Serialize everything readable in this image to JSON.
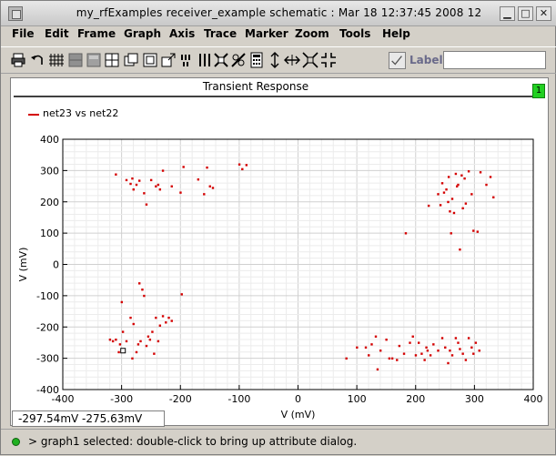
{
  "window": {
    "title": "my_rfExamples receiver_example schematic : Mar 18 12:37:45 2008 12",
    "buttons": {
      "minimize": "▁",
      "maximize": "□",
      "close": "✕"
    }
  },
  "menu": [
    "File",
    "Edit",
    "Frame",
    "Graph",
    "Axis",
    "Trace",
    "Marker",
    "Zoom",
    "Tools",
    "Help"
  ],
  "toolbar": {
    "icons": [
      "print-icon",
      "undo-icon",
      "grid-icon",
      "strip-icon",
      "strip-alt-icon",
      "subwindow-icon",
      "copy-window-icon",
      "new-window-icon",
      "zoom-window-icon",
      "markers-icon",
      "delta-marker-icon",
      "crosshair-icon",
      "calculator-icon",
      "vertical-split-icon",
      "horizontal-split-icon",
      "fit-icon",
      "zoom-fit-icon"
    ],
    "label_text": "Label",
    "label_input_value": ""
  },
  "graph": {
    "title": "Transient Response",
    "badge": "1",
    "legend": "net23 vs net22",
    "trace_color": "#d40000"
  },
  "readout": {
    "text": "-297.54mV   -275.63mV"
  },
  "status": {
    "message": "> graph1 selected: double-click to bring up attribute dialog."
  },
  "chart_data": {
    "type": "scatter",
    "title": "Transient Response",
    "xlabel": "V (mV)",
    "ylabel": "V (mV)",
    "xlim": [
      -400,
      400
    ],
    "ylim": [
      -400,
      400
    ],
    "xticks": [
      -400,
      -300,
      -200,
      -100,
      0,
      100,
      200,
      300,
      400
    ],
    "yticks": [
      -400,
      -300,
      -200,
      -100,
      0,
      100,
      200,
      300,
      400
    ],
    "grid": true,
    "legend_position": "top-left",
    "series": [
      {
        "name": "net23 vs net22",
        "color": "#d40000",
        "points": [
          [
            -310,
            288
          ],
          [
            -292,
            270
          ],
          [
            -282,
            275
          ],
          [
            -275,
            255
          ],
          [
            -280,
            240
          ],
          [
            -270,
            268
          ],
          [
            -262,
            228
          ],
          [
            -250,
            270
          ],
          [
            -242,
            250
          ],
          [
            -238,
            255
          ],
          [
            -235,
            240
          ],
          [
            -230,
            300
          ],
          [
            -215,
            250
          ],
          [
            -200,
            230
          ],
          [
            -195,
            312
          ],
          [
            -170,
            272
          ],
          [
            -160,
            225
          ],
          [
            -155,
            310
          ],
          [
            -150,
            250
          ],
          [
            -145,
            245
          ],
          [
            -100,
            320
          ],
          [
            -95,
            305
          ],
          [
            -88,
            318
          ],
          [
            -258,
            192
          ],
          [
            -285,
            258
          ],
          [
            222,
            188
          ],
          [
            238,
            225
          ],
          [
            242,
            190
          ],
          [
            245,
            260
          ],
          [
            248,
            230
          ],
          [
            252,
            240
          ],
          [
            255,
            200
          ],
          [
            256,
            280
          ],
          [
            258,
            170
          ],
          [
            260,
            100
          ],
          [
            262,
            210
          ],
          [
            265,
            165
          ],
          [
            268,
            290
          ],
          [
            270,
            250
          ],
          [
            272,
            255
          ],
          [
            275,
            48
          ],
          [
            278,
            285
          ],
          [
            280,
            180
          ],
          [
            283,
            275
          ],
          [
            285,
            195
          ],
          [
            290,
            298
          ],
          [
            295,
            225
          ],
          [
            298,
            108
          ],
          [
            305,
            105
          ],
          [
            310,
            295
          ],
          [
            320,
            255
          ],
          [
            327,
            280
          ],
          [
            332,
            215
          ],
          [
            183,
            100
          ],
          [
            -300,
            -120
          ],
          [
            -298,
            -215
          ],
          [
            -292,
            -245
          ],
          [
            -285,
            -170
          ],
          [
            -280,
            -190
          ],
          [
            -275,
            -280
          ],
          [
            -272,
            -255
          ],
          [
            -268,
            -245
          ],
          [
            -262,
            -100
          ],
          [
            -258,
            -260
          ],
          [
            -255,
            -230
          ],
          [
            -252,
            -240
          ],
          [
            -248,
            -215
          ],
          [
            -245,
            -285
          ],
          [
            -242,
            -170
          ],
          [
            -238,
            -245
          ],
          [
            -235,
            -195
          ],
          [
            -230,
            -165
          ],
          [
            -225,
            -185
          ],
          [
            -220,
            -170
          ],
          [
            -215,
            -180
          ],
          [
            -198,
            -95
          ],
          [
            -310,
            -240
          ],
          [
            -315,
            -245
          ],
          [
            -320,
            -240
          ],
          [
            -303,
            -255
          ],
          [
            -305,
            -280
          ],
          [
            -282,
            -300
          ],
          [
            -265,
            -80
          ],
          [
            -270,
            -60
          ],
          [
            82,
            -300
          ],
          [
            100,
            -265
          ],
          [
            115,
            -265
          ],
          [
            120,
            -290
          ],
          [
            125,
            -255
          ],
          [
            132,
            -230
          ],
          [
            135,
            -335
          ],
          [
            140,
            -275
          ],
          [
            150,
            -240
          ],
          [
            155,
            -300
          ],
          [
            160,
            -300
          ],
          [
            168,
            -305
          ],
          [
            172,
            -260
          ],
          [
            180,
            -285
          ],
          [
            190,
            -250
          ],
          [
            195,
            -230
          ],
          [
            200,
            -290
          ],
          [
            205,
            -250
          ],
          [
            210,
            -285
          ],
          [
            215,
            -305
          ],
          [
            218,
            -265
          ],
          [
            220,
            -275
          ],
          [
            225,
            -290
          ],
          [
            230,
            -255
          ],
          [
            238,
            -275
          ],
          [
            245,
            -235
          ],
          [
            250,
            -265
          ],
          [
            255,
            -315
          ],
          [
            258,
            -275
          ],
          [
            262,
            -290
          ],
          [
            268,
            -235
          ],
          [
            272,
            -250
          ],
          [
            275,
            -270
          ],
          [
            280,
            -285
          ],
          [
            285,
            -305
          ],
          [
            290,
            -235
          ],
          [
            295,
            -265
          ],
          [
            298,
            -285
          ],
          [
            302,
            -250
          ],
          [
            308,
            -275
          ]
        ]
      }
    ],
    "marker_point": [
      -297.54,
      -275.63
    ]
  }
}
